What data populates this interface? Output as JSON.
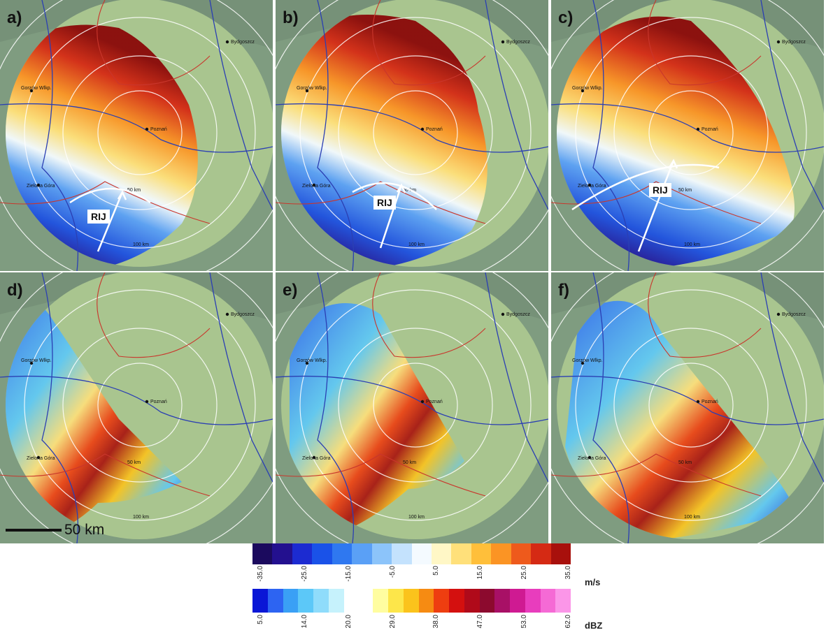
{
  "panels": [
    {
      "letter": "a)",
      "mode": "vel",
      "rij_label": "RIJ"
    },
    {
      "letter": "b)",
      "mode": "vel",
      "rij_label": "RIJ"
    },
    {
      "letter": "c)",
      "mode": "vel",
      "rij_label": "RIJ"
    },
    {
      "letter": "d)",
      "mode": "dbz"
    },
    {
      "letter": "e)",
      "mode": "dbz"
    },
    {
      "letter": "f)",
      "mode": "dbz"
    }
  ],
  "map_labels": {
    "bydgoszcz": "Bydgoszcz",
    "gorzow": "Gorzów Wlkp.",
    "poznan": "Poznań",
    "zielona": "Zielona Góra",
    "ring_50": "50 km",
    "ring_100": "100 km"
  },
  "scale_bar": "50 km",
  "velocity_scale": {
    "unit": "m/s",
    "ticks": [
      "-35.0",
      "-25.0",
      "-15.0",
      "-5.0",
      "5.0",
      "15.0",
      "25.0",
      "35.0"
    ],
    "colors": [
      "#1b0a5e",
      "#23108f",
      "#1c2bd1",
      "#1a52e8",
      "#2f78f0",
      "#5aa0f6",
      "#8cc4fa",
      "#c4e2fd",
      "#f4faff",
      "#fff7c6",
      "#ffe07a",
      "#ffbf3a",
      "#fb9424",
      "#ee5a1c",
      "#d52a14",
      "#a8100c"
    ]
  },
  "reflectivity_scale": {
    "unit": "dBZ",
    "ticks": [
      "5.0",
      "14.0",
      "20.0",
      "29.0",
      "38.0",
      "47.0",
      "53.0",
      "62.0"
    ],
    "colors": [
      "#0a17d6",
      "#2d64f2",
      "#3aa0f5",
      "#5cc8f8",
      "#8fdcfb",
      "#c6f2fc",
      "#ffffff",
      "#fffda0",
      "#fde64a",
      "#fbc31c",
      "#f68b12",
      "#ee3e10",
      "#d4100f",
      "#b00a1a",
      "#8c0a2e",
      "#a81066",
      "#cf1a92",
      "#e83dbd",
      "#f56ad5",
      "#fb96e8"
    ]
  }
}
